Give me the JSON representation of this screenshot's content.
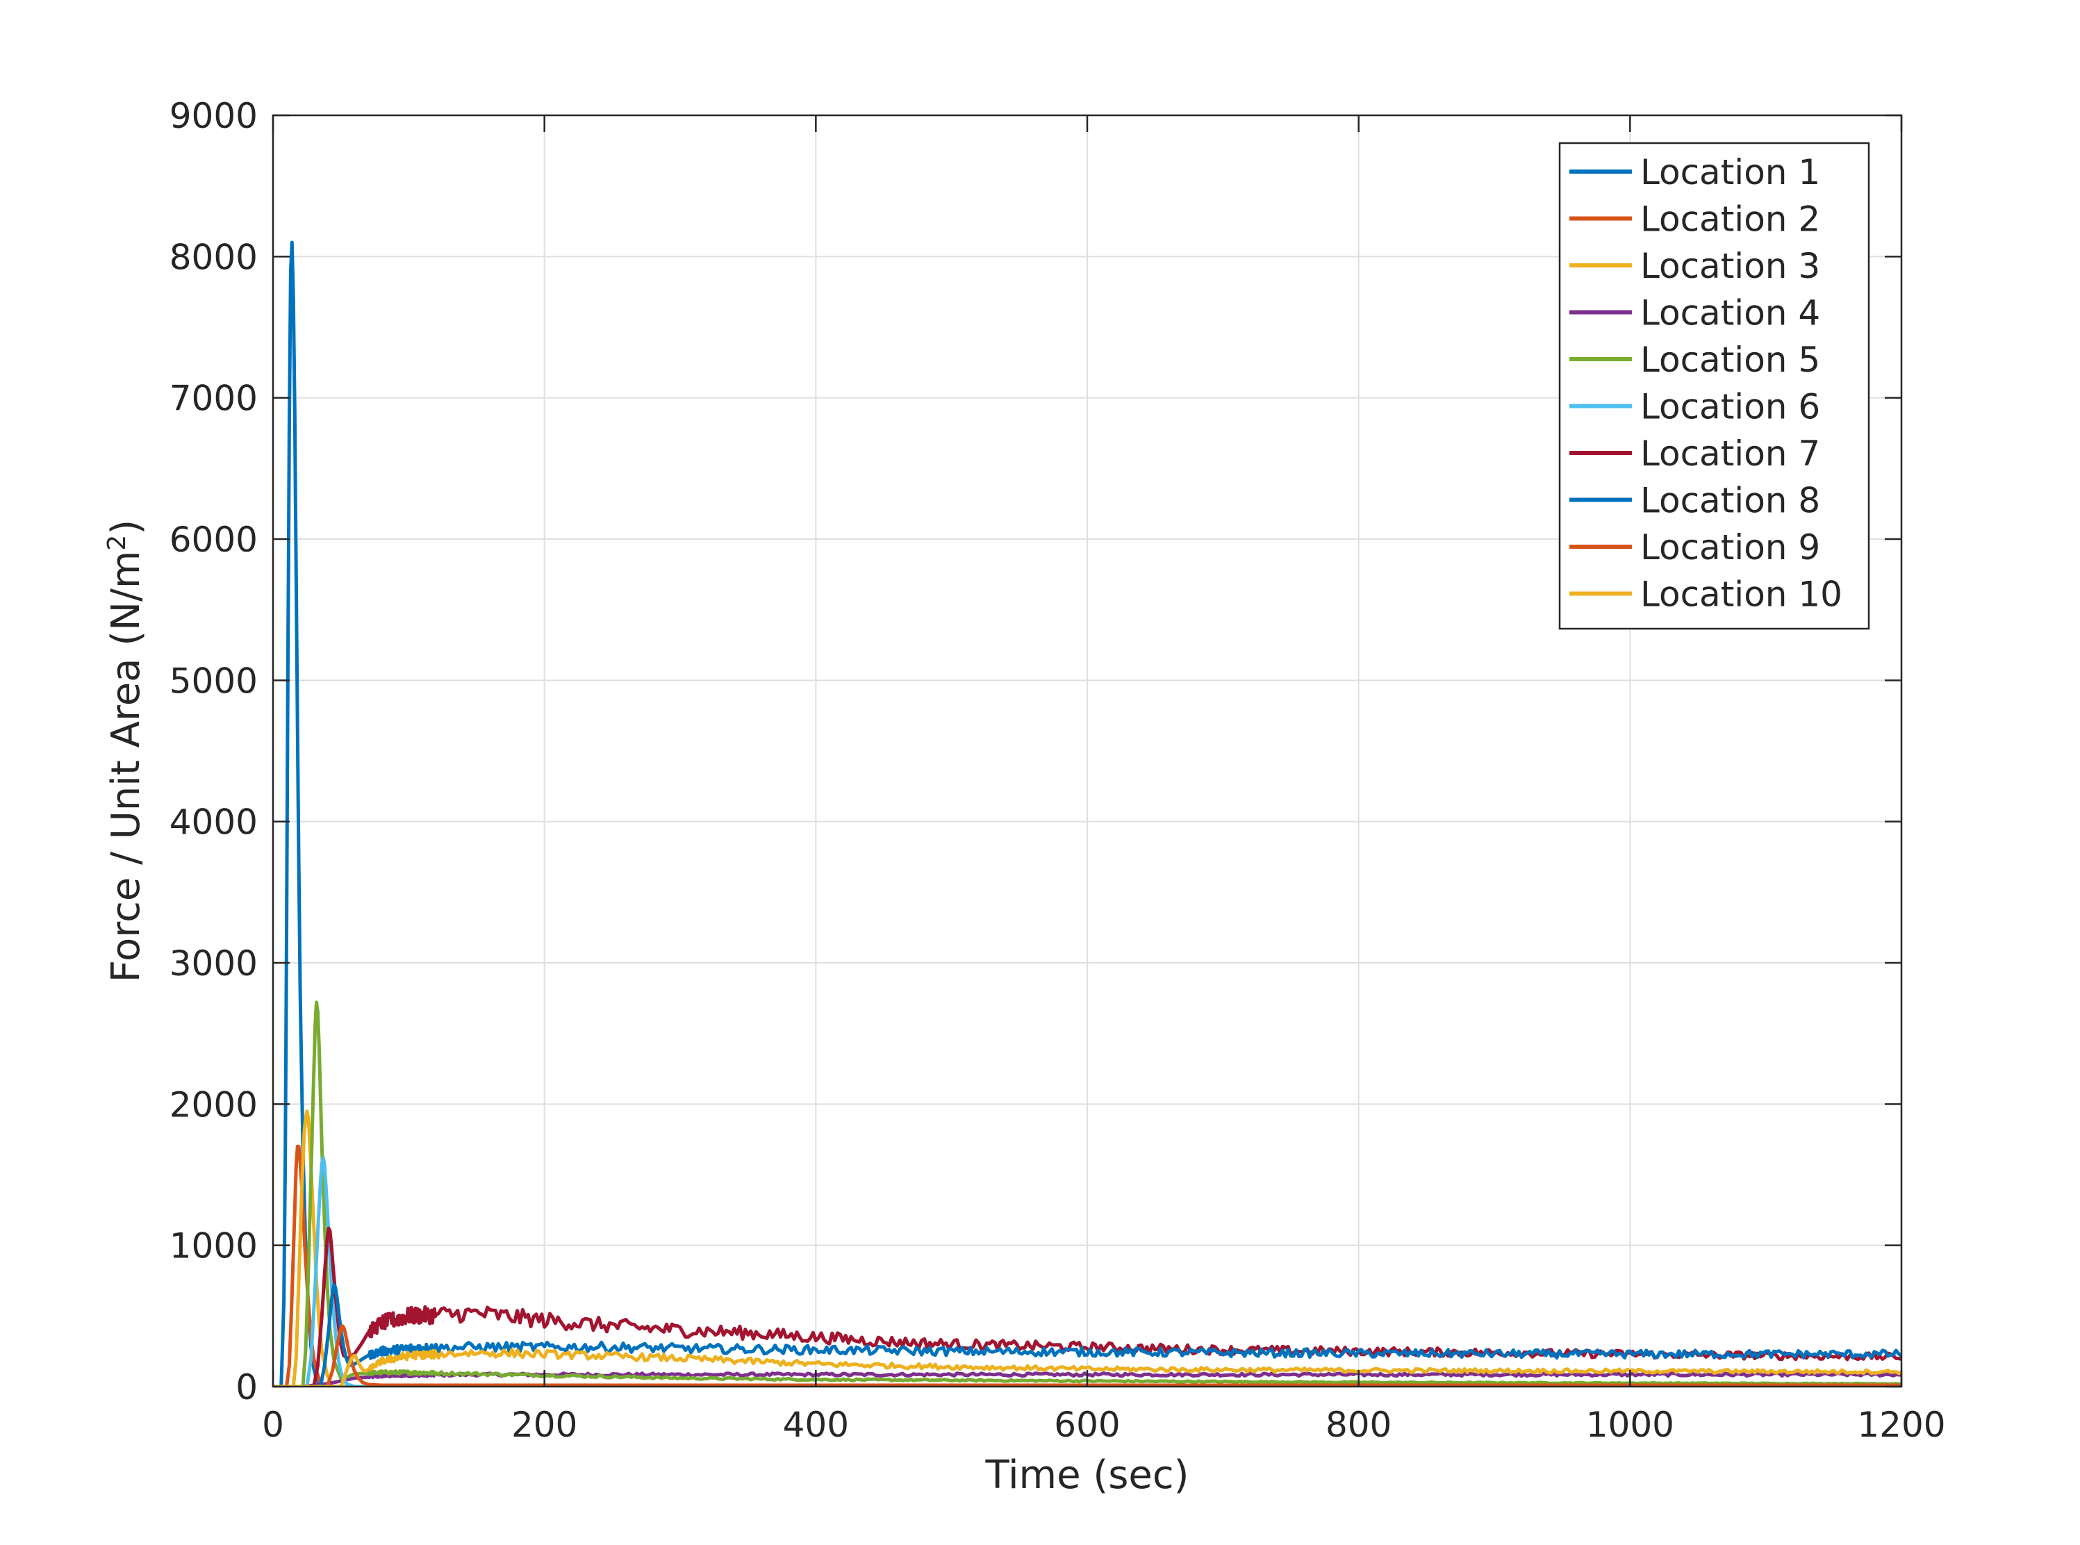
{
  "chart_data": {
    "type": "line",
    "title": "",
    "xlabel": "Time (sec)",
    "ylabel_main": "Force / Unit Area (N/m",
    "ylabel_sup": "2",
    "ylabel_close": ")",
    "xlim": [
      0,
      1200
    ],
    "ylim": [
      0,
      9000
    ],
    "xticks": [
      0,
      200,
      400,
      600,
      800,
      1000,
      1200
    ],
    "yticks": [
      0,
      1000,
      2000,
      3000,
      4000,
      5000,
      6000,
      7000,
      8000,
      9000
    ],
    "xtick_labels": [
      "0",
      "200",
      "400",
      "600",
      "800",
      "1000",
      "1200"
    ],
    "ytick_labels": [
      "0",
      "1000",
      "2000",
      "3000",
      "4000",
      "5000",
      "6000",
      "7000",
      "8000",
      "9000"
    ],
    "grid": true,
    "legend_position": "top-right",
    "series": [
      {
        "name": "Location 1",
        "color": "#0072BD",
        "x": [
          0,
          6,
          8,
          9,
          10,
          11,
          12,
          13,
          14,
          15,
          16,
          17,
          18,
          19,
          20,
          22,
          24,
          26,
          28,
          30,
          32,
          36,
          1200
        ],
        "y": [
          0,
          0,
          600,
          1600,
          3200,
          5200,
          6800,
          7900,
          8100,
          7700,
          6900,
          5800,
          4700,
          3700,
          2800,
          1700,
          1000,
          550,
          280,
          130,
          50,
          0,
          0
        ]
      },
      {
        "name": "Location 2",
        "color": "#D95319",
        "x": [
          0,
          10,
          12,
          14,
          16,
          17,
          18,
          19,
          20,
          21,
          22,
          24,
          26,
          28,
          30,
          33,
          36,
          1200
        ],
        "y": [
          0,
          0,
          150,
          650,
          1250,
          1550,
          1700,
          1700,
          1600,
          1450,
          1250,
          900,
          600,
          350,
          200,
          80,
          0,
          0
        ]
      },
      {
        "name": "Location 3",
        "color": "#EDB120",
        "x": [
          0,
          15,
          17,
          19,
          21,
          23,
          24,
          25,
          26,
          27,
          28,
          30,
          32,
          34,
          36,
          40,
          44,
          1200
        ],
        "y": [
          0,
          0,
          200,
          750,
          1350,
          1800,
          1900,
          1950,
          1900,
          1750,
          1550,
          1150,
          750,
          450,
          250,
          80,
          0,
          0
        ]
      },
      {
        "name": "Location 4",
        "color": "#7E2F8E",
        "x": [
          0,
          20,
          40,
          50,
          60,
          80,
          100,
          150,
          200,
          300,
          400,
          500,
          600,
          800,
          1000,
          1200
        ],
        "y": [
          0,
          0,
          20,
          40,
          60,
          75,
          80,
          85,
          85,
          85,
          85,
          85,
          85,
          85,
          85,
          85
        ]
      },
      {
        "name": "Location 5",
        "color": "#77AC30",
        "x": [
          0,
          22,
          24,
          26,
          28,
          30,
          31,
          32,
          33,
          34,
          35,
          36,
          38,
          40,
          42,
          45,
          50,
          55,
          60,
          80,
          100,
          150,
          200,
          300,
          400,
          600,
          800,
          1200
        ],
        "y": [
          0,
          0,
          250,
          800,
          1500,
          2200,
          2550,
          2720,
          2650,
          2400,
          2050,
          1700,
          1150,
          700,
          400,
          180,
          60,
          70,
          90,
          100,
          100,
          90,
          80,
          60,
          50,
          40,
          30,
          20
        ]
      },
      {
        "name": "Location 6",
        "color": "#4DBEEE",
        "x": [
          0,
          25,
          28,
          31,
          33,
          35,
          36,
          37,
          38,
          39,
          40,
          42,
          44,
          46,
          48,
          50,
          54,
          60,
          1200
        ],
        "y": [
          0,
          0,
          200,
          700,
          1100,
          1450,
          1580,
          1620,
          1560,
          1420,
          1250,
          900,
          600,
          380,
          200,
          100,
          20,
          0,
          0
        ]
      },
      {
        "name": "Location 7",
        "color": "#A2142F",
        "x": [
          0,
          30,
          33,
          36,
          38,
          40,
          41,
          42,
          43,
          44,
          46,
          48,
          50,
          52,
          55,
          60,
          65,
          70,
          80,
          100,
          150,
          200,
          250,
          300,
          350,
          400,
          450,
          500,
          600,
          700,
          800,
          900,
          1000,
          1100,
          1200
        ],
        "y": [
          0,
          0,
          150,
          500,
          800,
          1050,
          1120,
          1100,
          1000,
          880,
          650,
          450,
          300,
          220,
          200,
          230,
          300,
          380,
          450,
          500,
          520,
          470,
          430,
          400,
          380,
          350,
          320,
          300,
          280,
          260,
          250,
          240,
          230,
          220,
          210
        ]
      },
      {
        "name": "Location 8",
        "color": "#0072BD",
        "x": [
          0,
          35,
          38,
          41,
          43,
          44,
          45,
          46,
          47,
          48,
          50,
          52,
          54,
          56,
          60,
          65,
          70,
          80,
          100,
          150,
          200,
          250,
          300,
          400,
          500,
          600,
          800,
          1000,
          1100,
          1200
        ],
        "y": [
          0,
          0,
          150,
          400,
          600,
          680,
          720,
          700,
          640,
          560,
          400,
          280,
          200,
          150,
          160,
          190,
          220,
          250,
          270,
          280,
          280,
          280,
          270,
          260,
          250,
          245,
          235,
          230,
          230,
          230
        ]
      },
      {
        "name": "Location 9",
        "color": "#D95319",
        "x": [
          0,
          40,
          44,
          47,
          49,
          50,
          51,
          52,
          53,
          54,
          56,
          58,
          60,
          63,
          66,
          70,
          80,
          100,
          200,
          400,
          600,
          800,
          1200
        ],
        "y": [
          0,
          0,
          120,
          280,
          370,
          410,
          430,
          420,
          390,
          340,
          250,
          170,
          110,
          60,
          30,
          15,
          10,
          10,
          10,
          10,
          10,
          10,
          10
        ]
      },
      {
        "name": "Location 10",
        "color": "#EDB120",
        "x": [
          0,
          50,
          53,
          56,
          58,
          59,
          60,
          61,
          62,
          64,
          66,
          68,
          70,
          75,
          80,
          100,
          150,
          200,
          300,
          400,
          500,
          600,
          800,
          1000,
          1200
        ],
        "y": [
          0,
          0,
          80,
          160,
          200,
          215,
          220,
          210,
          190,
          150,
          120,
          110,
          120,
          150,
          180,
          220,
          240,
          230,
          200,
          160,
          140,
          125,
          115,
          110,
          105
        ]
      }
    ]
  }
}
